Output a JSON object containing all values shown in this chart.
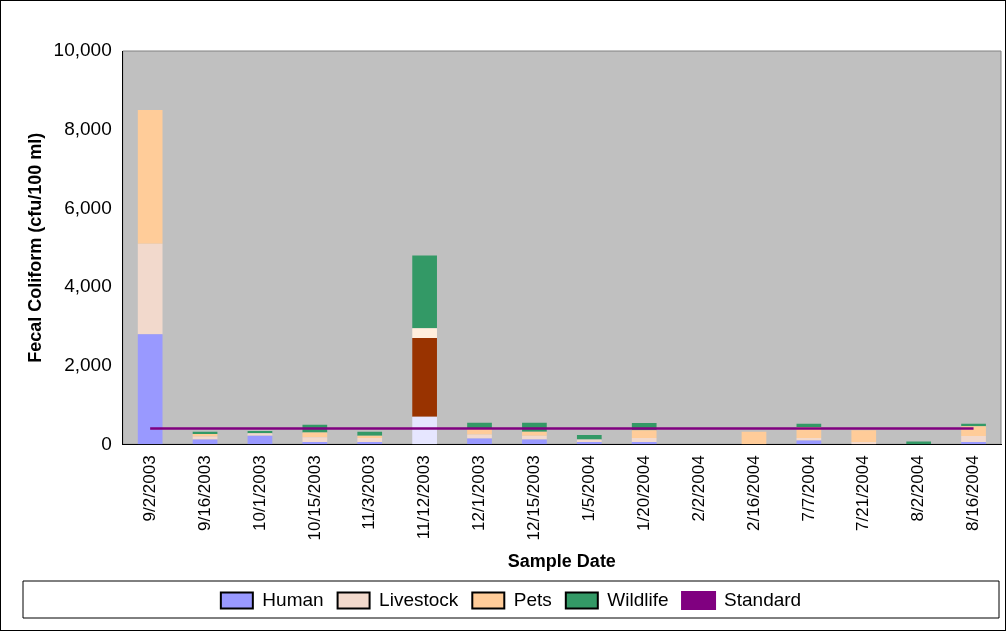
{
  "chart_data": {
    "type": "bar",
    "stacked": true,
    "xlabel": "Sample Date",
    "ylabel": "Fecal Coliform (cfu/100 ml)",
    "categories": [
      "9/2/2003",
      "9/16/2003",
      "10/1/2003",
      "10/15/2003",
      "11/3/2003",
      "11/12/2003",
      "12/1/2003",
      "12/15/2003",
      "1/5/2004",
      "1/20/2004",
      "2/2/2004",
      "2/16/2004",
      "7/7/2004",
      "7/21/2004",
      "8/2/2004",
      "8/16/2004"
    ],
    "series": [
      {
        "name": "Human",
        "color": "#9999ff",
        "colors": [
          "#9999ff",
          "#9999ff",
          "#9999ff",
          "#9999ff",
          "#9999ff",
          "#e6e6ff",
          "#9999ff",
          "#9999ff",
          "#9999ff",
          "#9999ff",
          "#9999ff",
          "#9999ff",
          "#9999ff",
          "#9999ff",
          "#9999ff",
          "#9999ff"
        ],
        "values": [
          2800,
          120,
          220,
          60,
          60,
          700,
          150,
          120,
          60,
          60,
          0,
          0,
          100,
          0,
          0,
          60
        ]
      },
      {
        "name": "Livestock",
        "color": "#f2d9cc",
        "colors": [
          "#f2d9cc",
          "#f2d9cc",
          "#f2d9cc",
          "#f2d9cc",
          "#f2d9cc",
          "#993300",
          "#f2d9cc",
          "#f2d9cc",
          "#f2d9cc",
          "#f2d9cc",
          "#f2d9cc",
          "#f2d9cc",
          "#f2d9cc",
          "#f2d9cc",
          "#f2d9cc",
          "#f2d9cc"
        ],
        "values": [
          2300,
          80,
          60,
          120,
          100,
          2000,
          100,
          100,
          60,
          100,
          0,
          0,
          60,
          60,
          0,
          150
        ]
      },
      {
        "name": "Pets",
        "color": "#ffcc99",
        "colors": [
          "#ffcc99",
          "#ffcc99",
          "#ffcc99",
          "#ffcc99",
          "#ffcc99",
          "#ffeedd",
          "#ffcc99",
          "#ffcc99",
          "#ffcc99",
          "#ffcc99",
          "#ffcc99",
          "#ffcc99",
          "#ffcc99",
          "#ffcc99",
          "#ffcc99",
          "#ffcc99"
        ],
        "values": [
          3400,
          60,
          0,
          120,
          60,
          250,
          150,
          100,
          0,
          200,
          0,
          320,
          280,
          300,
          0,
          250
        ]
      },
      {
        "name": "Wildlife",
        "color": "#339966",
        "values": [
          0,
          60,
          60,
          200,
          100,
          1850,
          150,
          230,
          120,
          180,
          0,
          0,
          80,
          null,
          70,
          60
        ]
      },
      {
        "name": "Standard",
        "type": "line",
        "color": "#800080",
        "values": [
          400,
          400,
          400,
          400,
          400,
          400,
          400,
          400,
          400,
          400,
          400,
          400,
          400,
          400,
          400,
          400
        ]
      }
    ],
    "ylim": [
      0,
      10000
    ],
    "yticks": [
      0,
      {
        "value": 2000,
        "label": "2,000"
      },
      {
        "value": 4000,
        "label": "4,000"
      },
      {
        "value": 6000,
        "label": "6,000"
      },
      {
        "value": 8000,
        "label": "8,000"
      },
      {
        "value": 10000,
        "label": "10,000"
      }
    ],
    "grid": false,
    "legend": "bottom",
    "marker": "none"
  }
}
